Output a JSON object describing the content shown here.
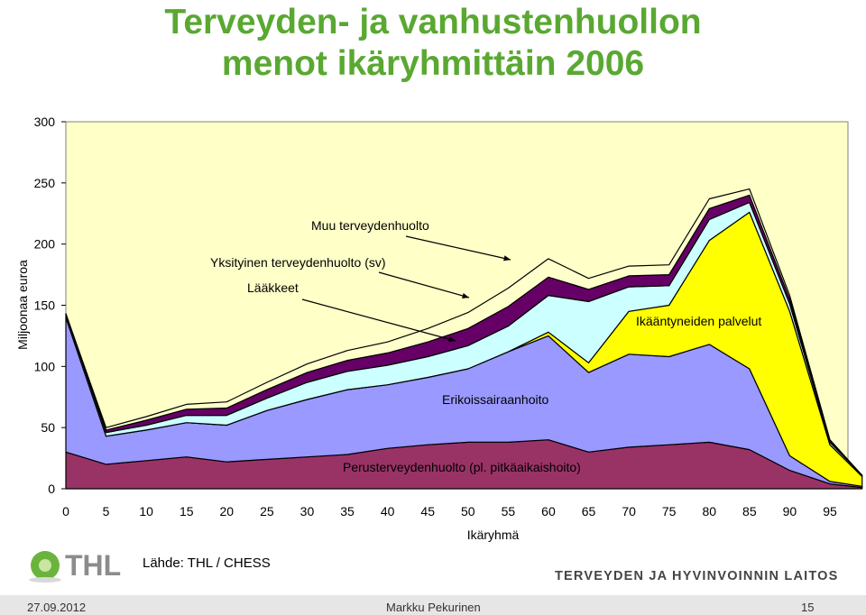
{
  "title_line1": "Terveyden- ja vanhustenhuollon",
  "title_line2": "menot ikäryhmittäin 2006",
  "source": "Lähde: THL / CHESS",
  "institute": "TERVEYDEN JA HYVINVOINNIN LAITOS",
  "logo_text": "THL",
  "footer": {
    "date": "27.09.2012",
    "author": "Markku Pekurinen",
    "page": "15"
  },
  "colors": {
    "plot_bg": "#ffffc8",
    "perus": "#993366",
    "erikois": "#9999ff",
    "ikaan": "#ffff00",
    "laakkeet": "#ccffff",
    "yksityinen": "#660066",
    "muu": "#ffffcc"
  },
  "chart_data": {
    "type": "area",
    "stacked": true,
    "xlabel": "Ikäryhmä",
    "ylabel": "Miljoonaa euroa",
    "xlim": [
      0,
      99
    ],
    "ylim": [
      0,
      300
    ],
    "x_ticks": [
      0,
      5,
      10,
      15,
      20,
      25,
      30,
      35,
      40,
      45,
      50,
      55,
      60,
      65,
      70,
      75,
      80,
      85,
      90,
      95
    ],
    "y_ticks": [
      0,
      50,
      100,
      150,
      200,
      250,
      300
    ],
    "grid": false,
    "x": [
      0,
      5,
      10,
      15,
      20,
      25,
      30,
      35,
      40,
      45,
      50,
      55,
      60,
      65,
      70,
      75,
      80,
      85,
      90,
      95,
      99
    ],
    "series": [
      {
        "key": "perus",
        "name": "Perusterveydenhuolto (pl. pitkäaikaishoito)",
        "values": [
          30,
          20,
          23,
          26,
          22,
          24,
          26,
          28,
          33,
          36,
          38,
          38,
          40,
          30,
          34,
          36,
          38,
          32,
          15,
          4,
          1
        ]
      },
      {
        "key": "erikois",
        "name": "Erikoissairaanhoito",
        "values": [
          110,
          23,
          25,
          28,
          30,
          40,
          47,
          53,
          52,
          55,
          60,
          74,
          85,
          65,
          76,
          72,
          80,
          66,
          12,
          2,
          1
        ]
      },
      {
        "key": "ikaan",
        "name": "Ikääntyneiden palvelut",
        "values": [
          0,
          0,
          0,
          0,
          0,
          0,
          0,
          0,
          0,
          0,
          0,
          0,
          3,
          8,
          35,
          42,
          85,
          128,
          118,
          30,
          8
        ]
      },
      {
        "key": "laakkeet",
        "name": "Lääkkeet",
        "values": [
          3,
          3,
          4,
          6,
          8,
          10,
          14,
          15,
          16,
          17,
          19,
          21,
          30,
          50,
          20,
          16,
          17,
          8,
          6,
          2,
          1
        ]
      },
      {
        "key": "yksityinen",
        "name": "Yksityinen terveydenhuolto (sv)",
        "values": [
          0,
          2,
          4,
          5,
          6,
          7,
          8,
          9,
          10,
          12,
          14,
          16,
          15,
          10,
          9,
          9,
          9,
          6,
          4,
          1,
          0
        ]
      },
      {
        "key": "muu",
        "name": "Muu terveydenhuolto",
        "values": [
          0,
          2,
          3,
          4,
          5,
          6,
          7,
          8,
          9,
          11,
          13,
          15,
          15,
          9,
          8,
          8,
          8,
          5,
          3,
          1,
          0
        ]
      }
    ],
    "annotations": [
      {
        "key": "muu",
        "text": "Muu terveydenhuolto"
      },
      {
        "key": "yksityinen",
        "text": "Yksityinen terveydenhuolto (sv)"
      },
      {
        "key": "laakkeet",
        "text": "Lääkkeet"
      },
      {
        "key": "ikaan",
        "text": "Ikääntyneiden palvelut"
      },
      {
        "key": "erikois",
        "text": "Erikoissairaanhoito"
      },
      {
        "key": "perus",
        "text": "Perusterveydenhuolto (pl. pitkäaikaishoito)"
      }
    ]
  }
}
